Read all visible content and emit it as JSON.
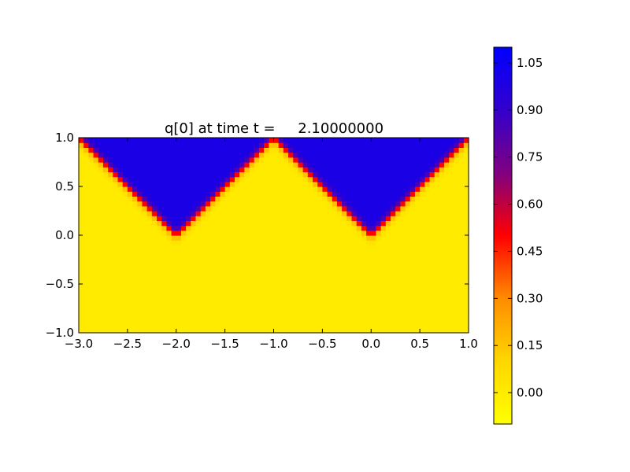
{
  "chart_data": {
    "type": "heatmap",
    "title": "q[0] at time t =     2.10000000",
    "xlim": [
      -3.0,
      1.0
    ],
    "ylim": [
      -1.0,
      1.0
    ],
    "xticks": [
      "−3.0",
      "−2.5",
      "−2.0",
      "−1.5",
      "−1.0",
      "−0.5",
      "0.0",
      "0.5",
      "1.0"
    ],
    "yticks": [
      "−1.0",
      "−0.5",
      "0.0",
      "0.5",
      "1.0"
    ],
    "field": {
      "description_values": "q ≈ 1.0 above the two V-shaped fronts, q ≈ 0.0 below",
      "v_vertices": [
        [
          -2.0,
          0.0
        ],
        [
          0.0,
          0.0
        ]
      ],
      "peak_between": [
        -1.0,
        1.0
      ],
      "slope": 1.0,
      "high_value": 1.0,
      "low_value": 0.0,
      "interface_width": 0.12,
      "grid": [
        80,
        40
      ]
    },
    "colorbar": {
      "range": [
        -0.1,
        1.1
      ],
      "ticks": [
        "1.05",
        "0.90",
        "0.75",
        "0.60",
        "0.45",
        "0.30",
        "0.15",
        "0.00"
      ],
      "tick_values": [
        1.05,
        0.9,
        0.75,
        0.6,
        0.45,
        0.3,
        0.15,
        0.0
      ],
      "colors": [
        "#ffff00",
        "#ffd700",
        "#ff8c00",
        "#ff0000",
        "#800080",
        "#3300cc",
        "#0000ff"
      ]
    }
  }
}
